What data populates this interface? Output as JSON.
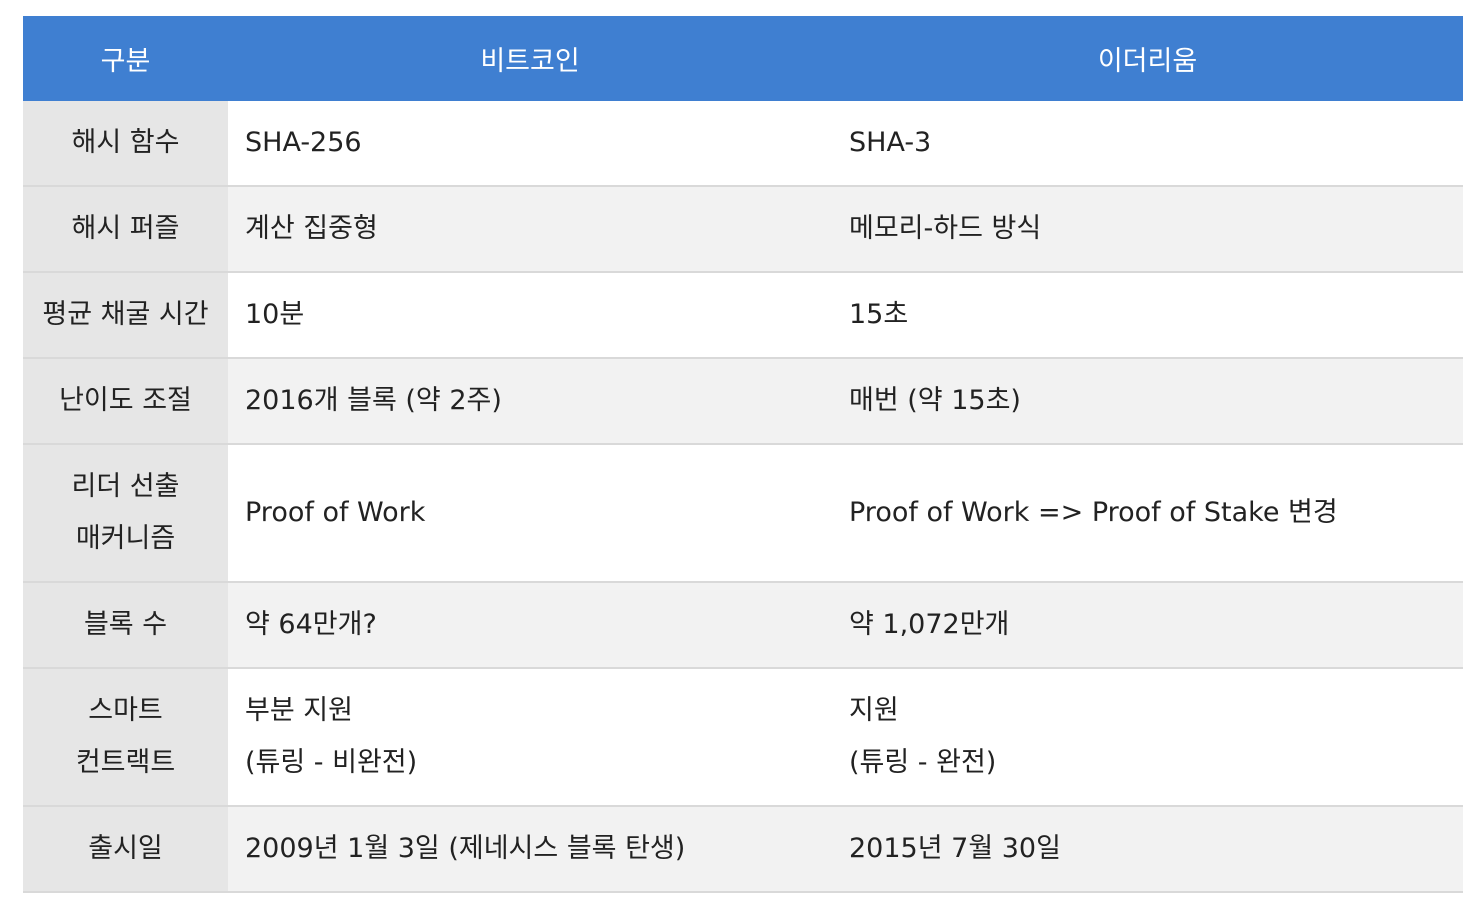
{
  "table": {
    "headers": [
      "구분",
      "비트코인",
      "이더리움"
    ],
    "rows": [
      {
        "label": [
          "해시 함수"
        ],
        "bitcoin": [
          "SHA-256"
        ],
        "ethereum": [
          "SHA-3"
        ]
      },
      {
        "label": [
          "해시 퍼즐"
        ],
        "bitcoin": [
          "계산 집중형"
        ],
        "ethereum": [
          "메모리-하드 방식"
        ]
      },
      {
        "label": [
          "평균 채굴 시간"
        ],
        "bitcoin": [
          "10분"
        ],
        "ethereum": [
          "15초"
        ]
      },
      {
        "label": [
          "난이도 조절"
        ],
        "bitcoin": [
          "2016개 블록 (약 2주)"
        ],
        "ethereum": [
          "매번 (약 15초)"
        ]
      },
      {
        "label": [
          "리더 선출",
          "매커니즘"
        ],
        "bitcoin": [
          "Proof of Work"
        ],
        "ethereum": [
          "Proof of Work => Proof of Stake 변경"
        ]
      },
      {
        "label": [
          "블록 수"
        ],
        "bitcoin": [
          "약 64만개?"
        ],
        "ethereum": [
          "약 1,072만개"
        ]
      },
      {
        "label": [
          "스마트",
          "컨트랙트"
        ],
        "bitcoin": [
          "부분 지원",
          "(튜링 - 비완전)"
        ],
        "ethereum": [
          "지원",
          "(튜링 - 완전)"
        ]
      },
      {
        "label": [
          "출시일"
        ],
        "bitcoin": [
          "2009년 1월 3일 (제네시스 블록 탄생)"
        ],
        "ethereum": [
          "2015년 7월 30일"
        ]
      }
    ]
  },
  "colors": {
    "header_bg": "#3f7fd1",
    "header_text": "#ffffff",
    "row_label_bg": "#e6e6e6",
    "alt_row_bg": "#f2f2f2",
    "border": "#d9d9d9"
  }
}
